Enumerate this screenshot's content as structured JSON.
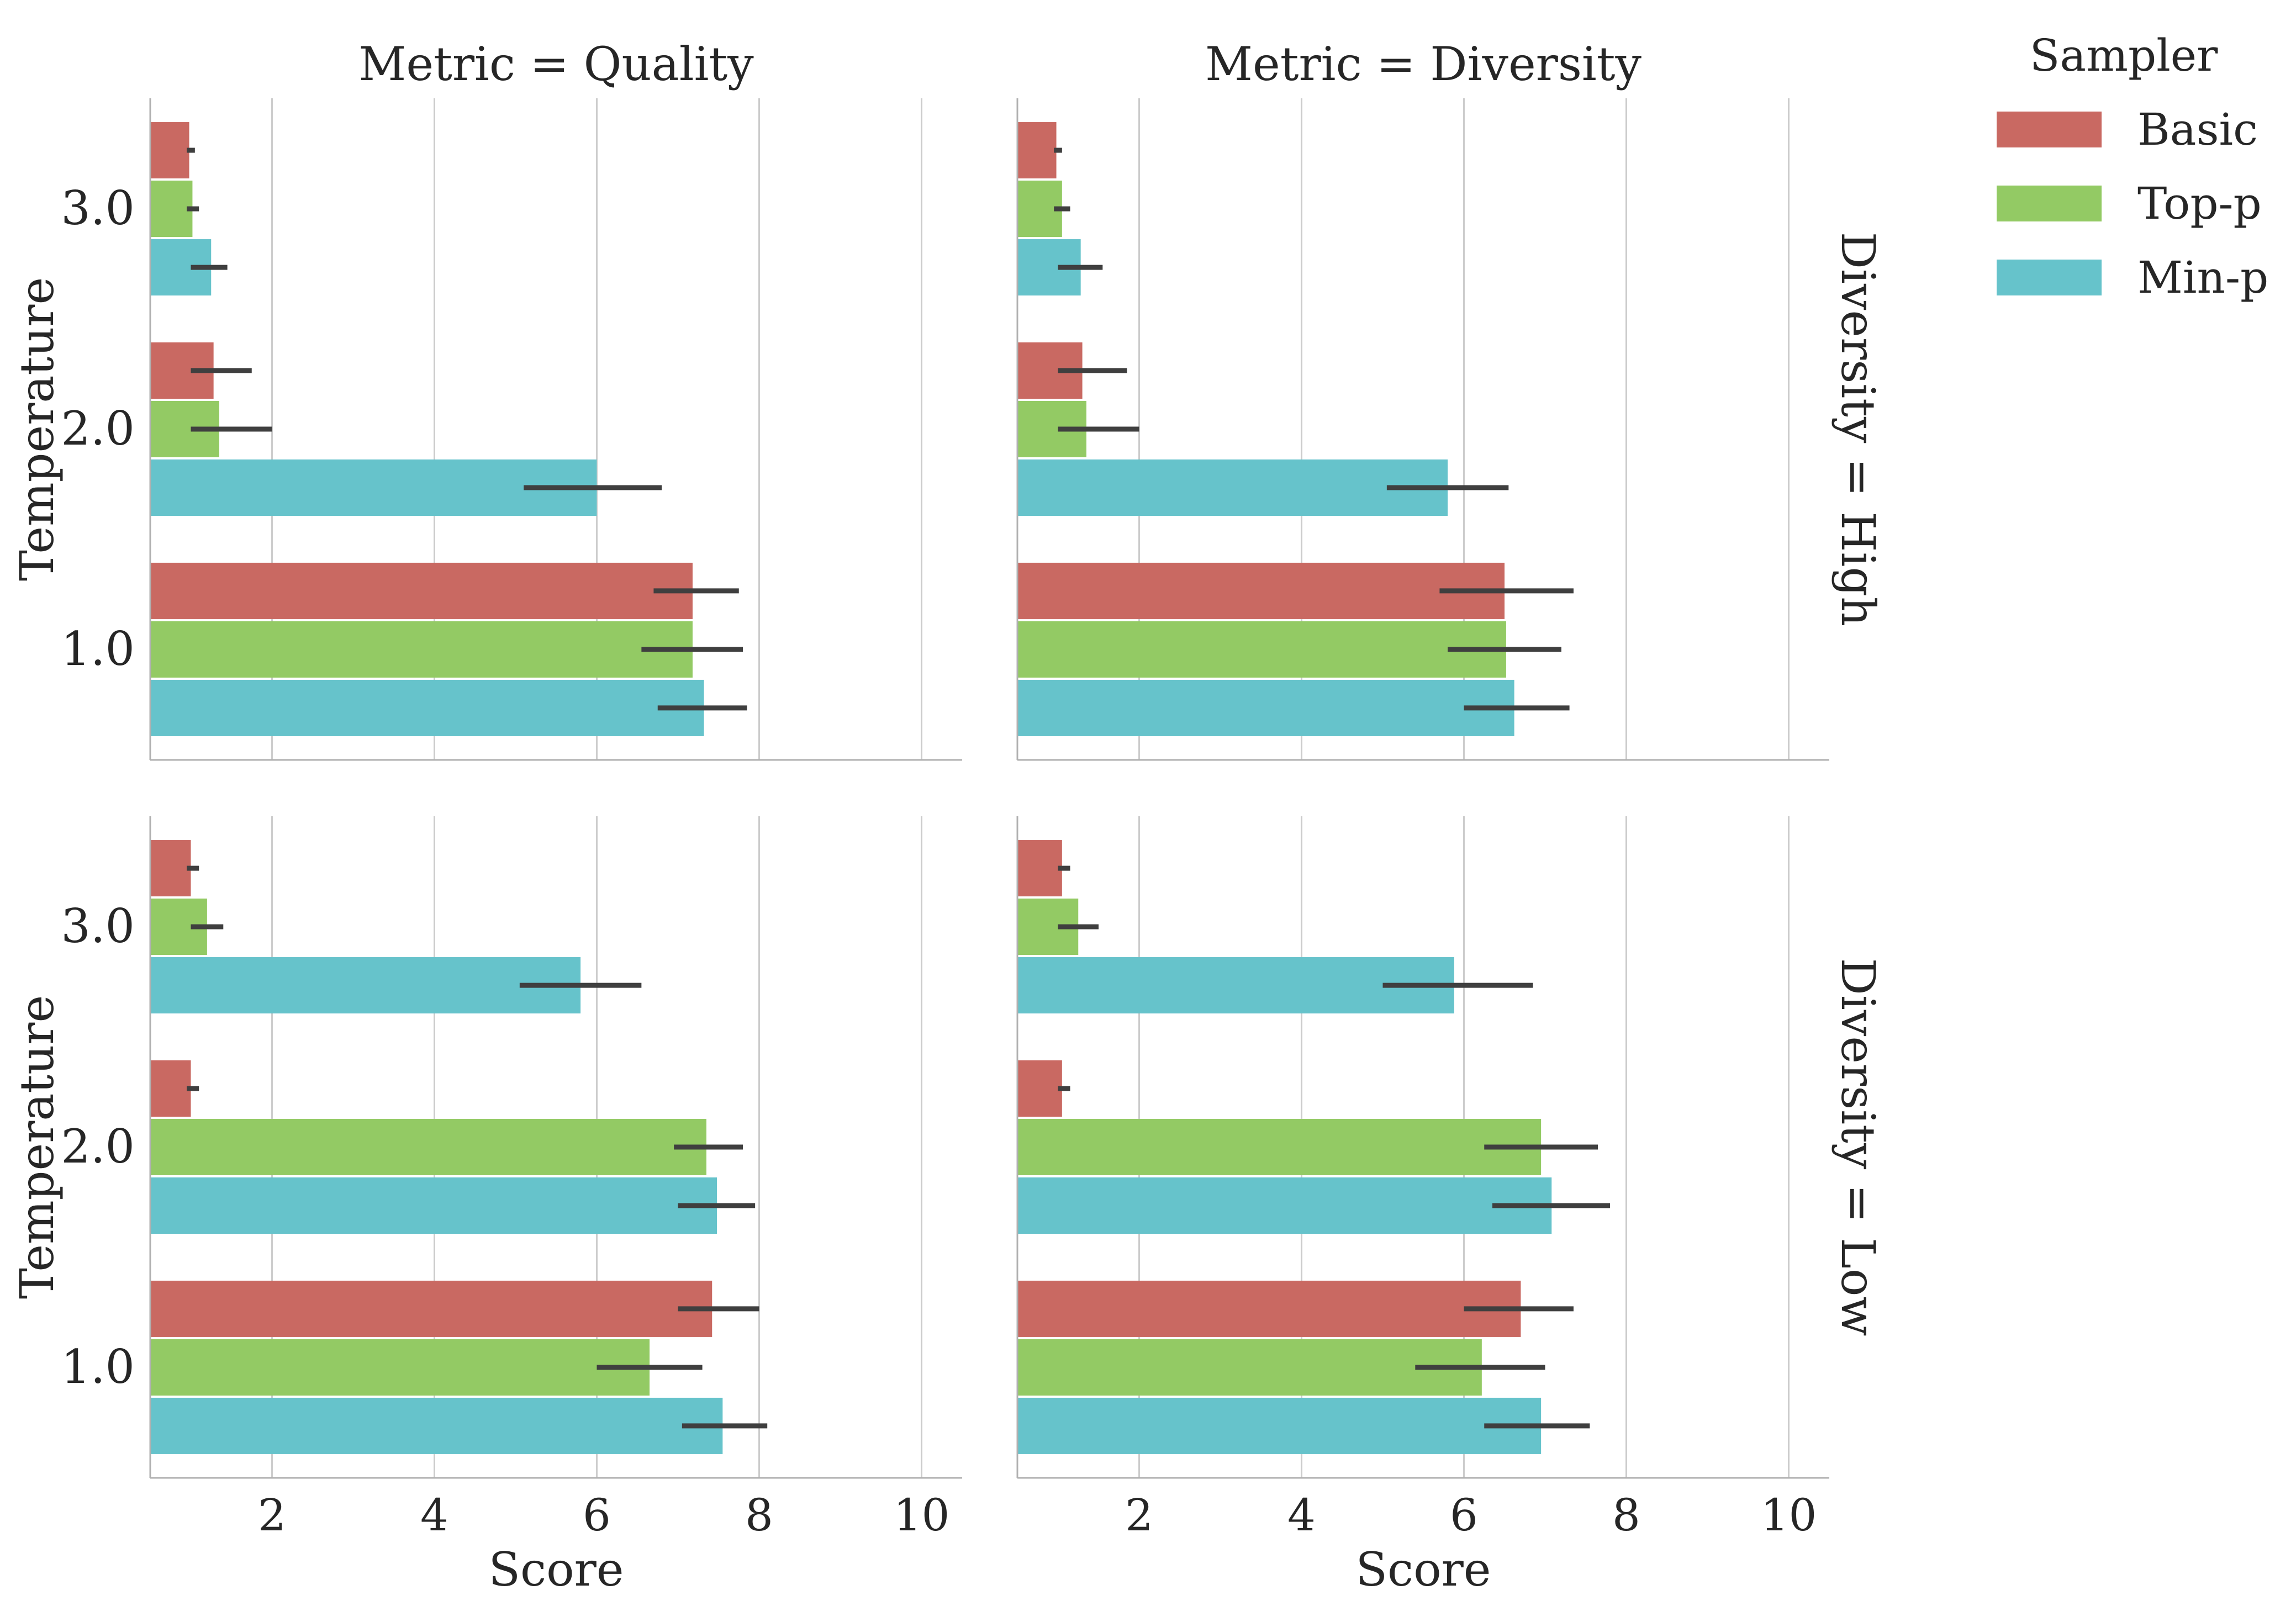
{
  "legend": {
    "title": "Sampler",
    "placement": "top-right",
    "entries": [
      {
        "label": "Basic",
        "color": "#c96962"
      },
      {
        "label": "Top-p",
        "color": "#93ca64"
      },
      {
        "label": "Min-p",
        "color": "#66c3cb"
      }
    ]
  },
  "chart_data": {
    "type": "bar",
    "orientation": "horizontal",
    "grid": "vertical gridlines on",
    "x_range": [
      0.5,
      10.5
    ],
    "x_ticks": [
      "2",
      "4",
      "6",
      "8",
      "10"
    ],
    "y_categories": [
      "3.0",
      "2.0",
      "1.0"
    ],
    "xlabel": "Score",
    "ylabel": "Temperature",
    "series_names": [
      "Basic",
      "Top-p",
      "Min-p"
    ],
    "panels": [
      {
        "title": "Metric = Quality",
        "row_label": "",
        "bars": {
          "3.0": {
            "Basic": 0.98,
            "Top-p": 1.02,
            "Min-p": 1.25
          },
          "2.0": {
            "Basic": 1.28,
            "Top-p": 1.35,
            "Min-p": 6.0
          },
          "1.0": {
            "Basic": 7.18,
            "Top-p": 7.18,
            "Min-p": 7.32
          }
        },
        "errors": {
          "3.0": {
            "Basic": [
              0.95,
              1.05
            ],
            "Top-p": [
              0.95,
              1.1
            ],
            "Min-p": [
              1.0,
              1.45
            ]
          },
          "2.0": {
            "Basic": [
              1.0,
              1.75
            ],
            "Top-p": [
              1.0,
              2.0
            ],
            "Min-p": [
              5.1,
              6.8
            ]
          },
          "1.0": {
            "Basic": [
              6.7,
              7.75
            ],
            "Top-p": [
              6.55,
              7.8
            ],
            "Min-p": [
              6.75,
              7.85
            ]
          }
        }
      },
      {
        "title": "Metric = Diversity",
        "row_label": "Diversity = High",
        "bars": {
          "3.0": {
            "Basic": 0.98,
            "Top-p": 1.05,
            "Min-p": 1.28
          },
          "2.0": {
            "Basic": 1.3,
            "Top-p": 1.35,
            "Min-p": 5.8
          },
          "1.0": {
            "Basic": 6.5,
            "Top-p": 6.52,
            "Min-p": 6.62
          }
        },
        "errors": {
          "3.0": {
            "Basic": [
              0.95,
              1.05
            ],
            "Top-p": [
              0.95,
              1.15
            ],
            "Min-p": [
              1.0,
              1.55
            ]
          },
          "2.0": {
            "Basic": [
              1.0,
              1.85
            ],
            "Top-p": [
              1.0,
              2.0
            ],
            "Min-p": [
              5.05,
              6.55
            ]
          },
          "1.0": {
            "Basic": [
              5.7,
              7.35
            ],
            "Top-p": [
              5.8,
              7.2
            ],
            "Min-p": [
              6.0,
              7.3
            ]
          }
        }
      },
      {
        "title": "",
        "row_label": "",
        "bars": {
          "3.0": {
            "Basic": 1.0,
            "Top-p": 1.2,
            "Min-p": 5.8
          },
          "2.0": {
            "Basic": 1.0,
            "Top-p": 7.35,
            "Min-p": 7.48
          },
          "1.0": {
            "Basic": 7.42,
            "Top-p": 6.65,
            "Min-p": 7.55
          }
        },
        "errors": {
          "3.0": {
            "Basic": [
              0.95,
              1.1
            ],
            "Top-p": [
              1.0,
              1.4
            ],
            "Min-p": [
              5.05,
              6.55
            ]
          },
          "2.0": {
            "Basic": [
              0.95,
              1.1
            ],
            "Top-p": [
              6.95,
              7.8
            ],
            "Min-p": [
              7.0,
              7.95
            ]
          },
          "1.0": {
            "Basic": [
              7.0,
              8.0
            ],
            "Top-p": [
              6.0,
              7.3
            ],
            "Min-p": [
              7.05,
              8.1
            ]
          }
        }
      },
      {
        "title": "",
        "row_label": "Diversity = Low",
        "bars": {
          "3.0": {
            "Basic": 1.05,
            "Top-p": 1.25,
            "Min-p": 5.88
          },
          "2.0": {
            "Basic": 1.05,
            "Top-p": 6.95,
            "Min-p": 7.08
          },
          "1.0": {
            "Basic": 6.7,
            "Top-p": 6.22,
            "Min-p": 6.95
          }
        },
        "errors": {
          "3.0": {
            "Basic": [
              1.0,
              1.15
            ],
            "Top-p": [
              1.0,
              1.5
            ],
            "Min-p": [
              5.0,
              6.85
            ]
          },
          "2.0": {
            "Basic": [
              1.0,
              1.15
            ],
            "Top-p": [
              6.25,
              7.65
            ],
            "Min-p": [
              6.35,
              7.8
            ]
          },
          "1.0": {
            "Basic": [
              6.0,
              7.35
            ],
            "Top-p": [
              5.4,
              7.0
            ],
            "Min-p": [
              6.25,
              7.55
            ]
          }
        }
      }
    ]
  }
}
